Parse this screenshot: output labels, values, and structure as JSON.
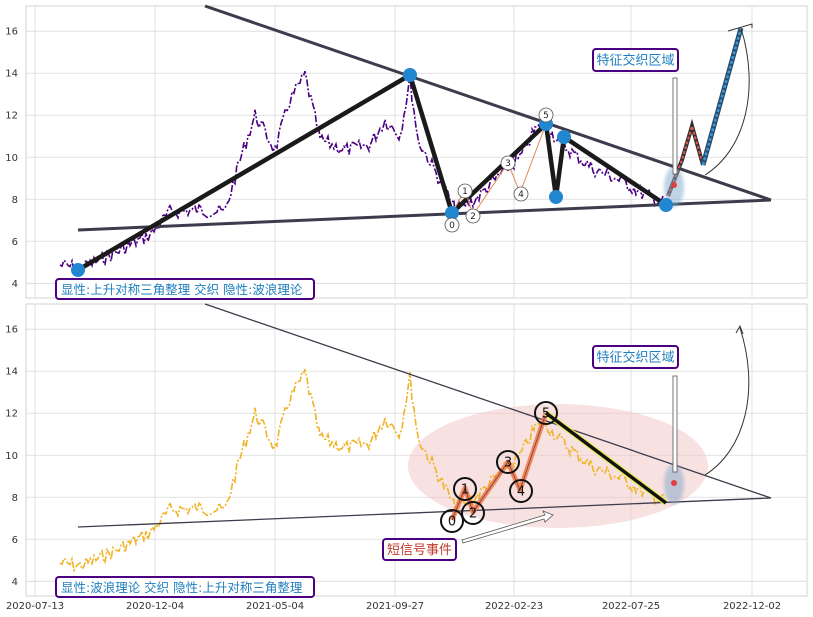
{
  "chart_data": [
    {
      "type": "line",
      "panel": "top",
      "ylim": [
        3.3,
        17.2
      ],
      "yticks": [
        4,
        6,
        8,
        10,
        12,
        14,
        16
      ],
      "grid": true,
      "annotation_box": "特征交织区域",
      "legend_text": "显性:上升对称三角整理 交织 隐性:波浪理论",
      "wave_labels": [
        "0",
        "1",
        "2",
        "3",
        "4",
        "5"
      ],
      "colors": {
        "price": "#4b0082",
        "pivot": "#2187d0",
        "wave": "#111111",
        "trend": "#3c3c4c",
        "projection": "#3a9ad8",
        "label_frame": "#4b0082",
        "label_text": "#1f7fbf"
      }
    },
    {
      "type": "line",
      "panel": "bottom",
      "ylim": [
        3.3,
        17.2
      ],
      "yticks": [
        4,
        6,
        8,
        10,
        12,
        14,
        16
      ],
      "grid": true,
      "annotation_box": "特征交织区域",
      "signal_text": "短信号事件",
      "legend_text": "显性:波浪理论 交织 隐性:上升对称三角整理",
      "wave_labels": [
        "0",
        "1",
        "2",
        "3",
        "4",
        "5"
      ],
      "colors": {
        "price": "#f0b428",
        "wave": "#f07850",
        "trend": "#3c3c4c",
        "highlight": "#f2c4c4",
        "label_frame": "#4b0082",
        "signal_text": "#c0392b"
      }
    }
  ],
  "x_axis": {
    "ticks": [
      "2020-07-13",
      "2020-12-04",
      "2021-05-04",
      "2021-09-27",
      "2022-02-23",
      "2022-07-25",
      "2022-12-02"
    ]
  }
}
